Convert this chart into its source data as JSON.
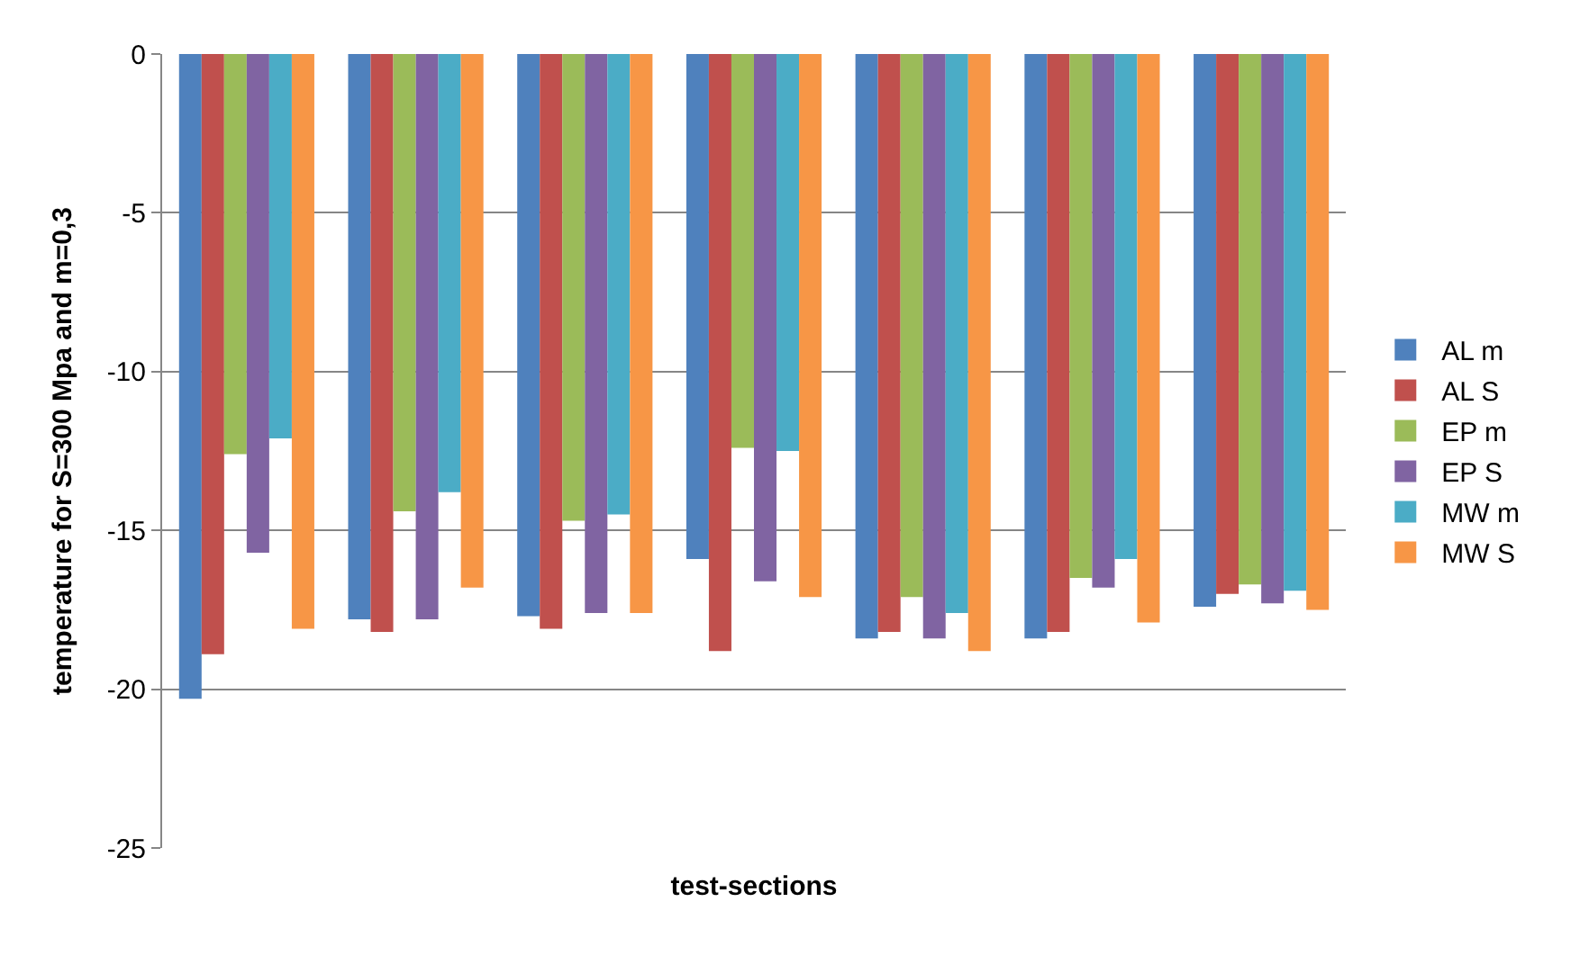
{
  "chart_data": {
    "type": "bar",
    "xlabel": "test-sections",
    "ylabel": "temperature for S=300 Mpa and m=0,3",
    "categories": [
      null,
      null,
      null,
      null,
      null,
      null,
      null
    ],
    "series": [
      {
        "name": "AL m",
        "color": "#4f81bd",
        "values": [
          -20.3,
          -17.8,
          -17.7,
          -15.9,
          -18.4,
          -18.4,
          -17.4
        ]
      },
      {
        "name": "AL S",
        "color": "#c0504d",
        "values": [
          -18.9,
          -18.2,
          -18.1,
          -18.8,
          -18.2,
          -18.2,
          -17.0
        ]
      },
      {
        "name": "EP m",
        "color": "#9bbb59",
        "values": [
          -12.6,
          -14.4,
          -14.7,
          -12.4,
          -17.1,
          -16.5,
          -16.7
        ]
      },
      {
        "name": "EP S",
        "color": "#8064a2",
        "values": [
          -15.7,
          -17.8,
          -17.6,
          -16.6,
          -18.4,
          -16.8,
          -17.3
        ]
      },
      {
        "name": "MW m",
        "color": "#4bacc6",
        "values": [
          -12.1,
          -13.8,
          -14.5,
          -12.5,
          -17.6,
          -15.9,
          -16.9
        ]
      },
      {
        "name": "MW S",
        "color": "#f79646",
        "values": [
          -18.1,
          -16.8,
          -17.6,
          -17.1,
          -18.8,
          -17.9,
          -17.5
        ]
      }
    ],
    "ylim": [
      -25,
      0
    ],
    "yticks": [
      -25,
      -20,
      -15,
      -10,
      -5,
      0
    ],
    "grid": "y",
    "legend": "right"
  }
}
